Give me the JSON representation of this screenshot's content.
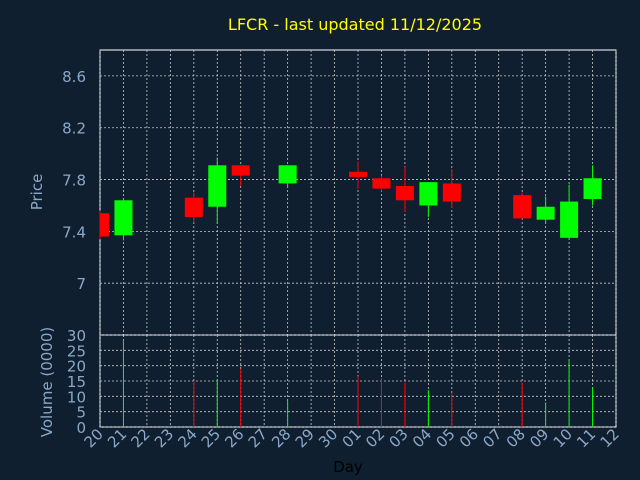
{
  "chart_data": {
    "type": "candlestick",
    "title": "LFCR - last updated 11/12/2025",
    "xlabel": "Day",
    "x_tick_labels": [
      "20",
      "21",
      "22",
      "23",
      "24",
      "25",
      "26",
      "27",
      "28",
      "29",
      "30",
      "01",
      "02",
      "03",
      "04",
      "05",
      "06",
      "07",
      "08",
      "09",
      "10",
      "11",
      "12"
    ],
    "price": {
      "ylabel": "Price",
      "ylim": [
        6.6,
        8.8
      ],
      "yticks": [
        "8.6",
        "8.2",
        "7.8",
        "7.4",
        "7"
      ],
      "candles": [
        {
          "day": "20",
          "open": 7.54,
          "close": 7.36,
          "high": 7.56,
          "low": 7.34
        },
        {
          "day": "21",
          "open": 7.37,
          "close": 7.64,
          "high": 7.65,
          "low": 7.33
        },
        {
          "day": "24",
          "open": 7.66,
          "close": 7.51,
          "high": 7.7,
          "low": 7.47
        },
        {
          "day": "25",
          "open": 7.59,
          "close": 7.91,
          "high": 7.97,
          "low": 7.46
        },
        {
          "day": "26",
          "open": 7.91,
          "close": 7.83,
          "high": 7.91,
          "low": 7.75
        },
        {
          "day": "28",
          "open": 7.77,
          "close": 7.91,
          "high": 7.91,
          "low": 7.74
        },
        {
          "day": "01",
          "open": 7.86,
          "close": 7.82,
          "high": 7.94,
          "low": 7.73
        },
        {
          "day": "02",
          "open": 7.81,
          "close": 7.73,
          "high": 7.83,
          "low": 7.71
        },
        {
          "day": "03",
          "open": 7.75,
          "close": 7.64,
          "high": 7.9,
          "low": 7.55
        },
        {
          "day": "04",
          "open": 7.6,
          "close": 7.78,
          "high": 7.78,
          "low": 7.51
        },
        {
          "day": "05",
          "open": 7.77,
          "close": 7.63,
          "high": 7.88,
          "low": 7.58
        },
        {
          "day": "08",
          "open": 7.68,
          "close": 7.5,
          "high": 7.7,
          "low": 7.5
        },
        {
          "day": "09",
          "open": 7.49,
          "close": 7.59,
          "high": 7.67,
          "low": 7.46
        },
        {
          "day": "10",
          "open": 7.35,
          "close": 7.63,
          "high": 7.76,
          "low": 7.35
        },
        {
          "day": "11",
          "open": 7.65,
          "close": 7.81,
          "high": 7.91,
          "low": 7.6
        }
      ]
    },
    "volume": {
      "ylabel": "Volume (0000)",
      "ylim": [
        0,
        30
      ],
      "yticks": [
        "30",
        "25",
        "20",
        "15",
        "10",
        "5",
        "0"
      ],
      "bars": [
        {
          "day": "21",
          "value": 28,
          "direction": "up"
        },
        {
          "day": "24",
          "value": 15,
          "direction": "down"
        },
        {
          "day": "25",
          "value": 15.5,
          "direction": "up"
        },
        {
          "day": "26",
          "value": 19,
          "direction": "down"
        },
        {
          "day": "28",
          "value": 8.5,
          "direction": "up"
        },
        {
          "day": "01",
          "value": 16.5,
          "direction": "down"
        },
        {
          "day": "02",
          "value": 16,
          "direction": "down"
        },
        {
          "day": "03",
          "value": 14.5,
          "direction": "down"
        },
        {
          "day": "04",
          "value": 12,
          "direction": "up"
        },
        {
          "day": "05",
          "value": 11,
          "direction": "down"
        },
        {
          "day": "08",
          "value": 14.5,
          "direction": "down"
        },
        {
          "day": "09",
          "value": 8,
          "direction": "up"
        },
        {
          "day": "10",
          "value": 22,
          "direction": "up"
        },
        {
          "day": "11",
          "value": 13,
          "direction": "up"
        }
      ]
    },
    "colors": {
      "background": "#0f1f30",
      "up": "#00ff00",
      "down": "#ff0000",
      "grid": "#c8c8c8",
      "title": "#ffff00",
      "text": "#8aa8c8"
    },
    "grid": true
  }
}
